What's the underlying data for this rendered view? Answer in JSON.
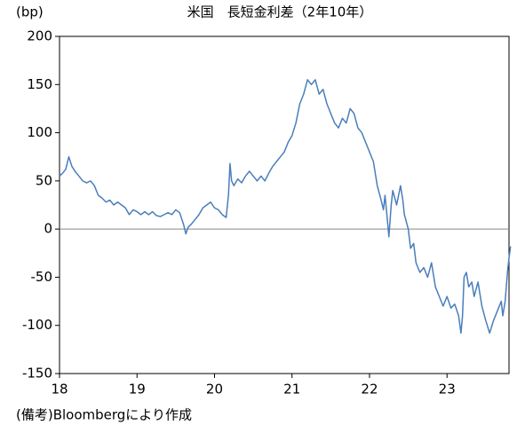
{
  "chart_data": {
    "type": "line",
    "title": "米国　長短金利差（2年10年）",
    "y_label": "(bp)",
    "note": "(備考)Bloombergにより作成",
    "color": "#4a7ebb",
    "zero_line": true,
    "x": [
      18.0,
      18.04,
      18.08,
      18.12,
      18.16,
      18.2,
      18.25,
      18.3,
      18.35,
      18.4,
      18.45,
      18.5,
      18.55,
      18.6,
      18.65,
      18.7,
      18.75,
      18.8,
      18.85,
      18.9,
      18.95,
      19.0,
      19.05,
      19.1,
      19.15,
      19.2,
      19.25,
      19.3,
      19.35,
      19.4,
      19.45,
      19.5,
      19.55,
      19.6,
      19.63,
      19.66,
      19.7,
      19.75,
      19.8,
      19.85,
      19.9,
      19.95,
      20.0,
      20.05,
      20.1,
      20.15,
      20.18,
      20.2,
      20.22,
      20.25,
      20.3,
      20.35,
      20.4,
      20.45,
      20.5,
      20.55,
      20.6,
      20.65,
      20.7,
      20.75,
      20.8,
      20.85,
      20.9,
      20.95,
      21.0,
      21.05,
      21.1,
      21.15,
      21.2,
      21.25,
      21.3,
      21.35,
      21.4,
      21.45,
      21.5,
      21.55,
      21.6,
      21.65,
      21.7,
      21.75,
      21.8,
      21.85,
      21.9,
      21.95,
      22.0,
      22.05,
      22.1,
      22.15,
      22.18,
      22.2,
      22.23,
      22.25,
      22.28,
      22.3,
      22.35,
      22.4,
      22.43,
      22.45,
      22.5,
      22.53,
      22.57,
      22.6,
      22.65,
      22.7,
      22.75,
      22.8,
      22.85,
      22.9,
      22.95,
      23.0,
      23.05,
      23.1,
      23.15,
      23.18,
      23.2,
      23.22,
      23.25,
      23.28,
      23.32,
      23.35,
      23.4,
      23.45,
      23.5,
      23.55,
      23.6,
      23.65,
      23.7,
      23.72,
      23.75,
      23.78,
      23.8,
      23.82
    ],
    "values": [
      55,
      58,
      62,
      75,
      65,
      60,
      55,
      50,
      48,
      50,
      45,
      35,
      32,
      28,
      30,
      25,
      28,
      25,
      22,
      15,
      20,
      18,
      15,
      18,
      15,
      18,
      14,
      13,
      15,
      17,
      15,
      20,
      17,
      5,
      -5,
      2,
      5,
      10,
      15,
      22,
      25,
      28,
      22,
      20,
      15,
      12,
      35,
      68,
      50,
      45,
      52,
      48,
      55,
      60,
      55,
      50,
      55,
      50,
      58,
      65,
      70,
      75,
      80,
      90,
      97,
      110,
      130,
      140,
      155,
      150,
      155,
      140,
      145,
      130,
      120,
      110,
      105,
      115,
      110,
      125,
      120,
      105,
      100,
      90,
      80,
      70,
      45,
      30,
      20,
      35,
      10,
      -8,
      25,
      40,
      25,
      45,
      30,
      15,
      0,
      -20,
      -15,
      -35,
      -45,
      -40,
      -50,
      -35,
      -60,
      -70,
      -80,
      -70,
      -82,
      -78,
      -90,
      -108,
      -90,
      -50,
      -45,
      -60,
      -55,
      -70,
      -55,
      -80,
      -95,
      -108,
      -95,
      -85,
      -75,
      -90,
      -75,
      -45,
      -30,
      -18
    ],
    "xlim": [
      18,
      23.8
    ],
    "xticks": [
      18,
      19,
      20,
      21,
      22,
      23
    ],
    "ylim": [
      -150,
      200
    ],
    "yticks": [
      -150,
      -100,
      -50,
      0,
      50,
      100,
      150,
      200
    ]
  }
}
